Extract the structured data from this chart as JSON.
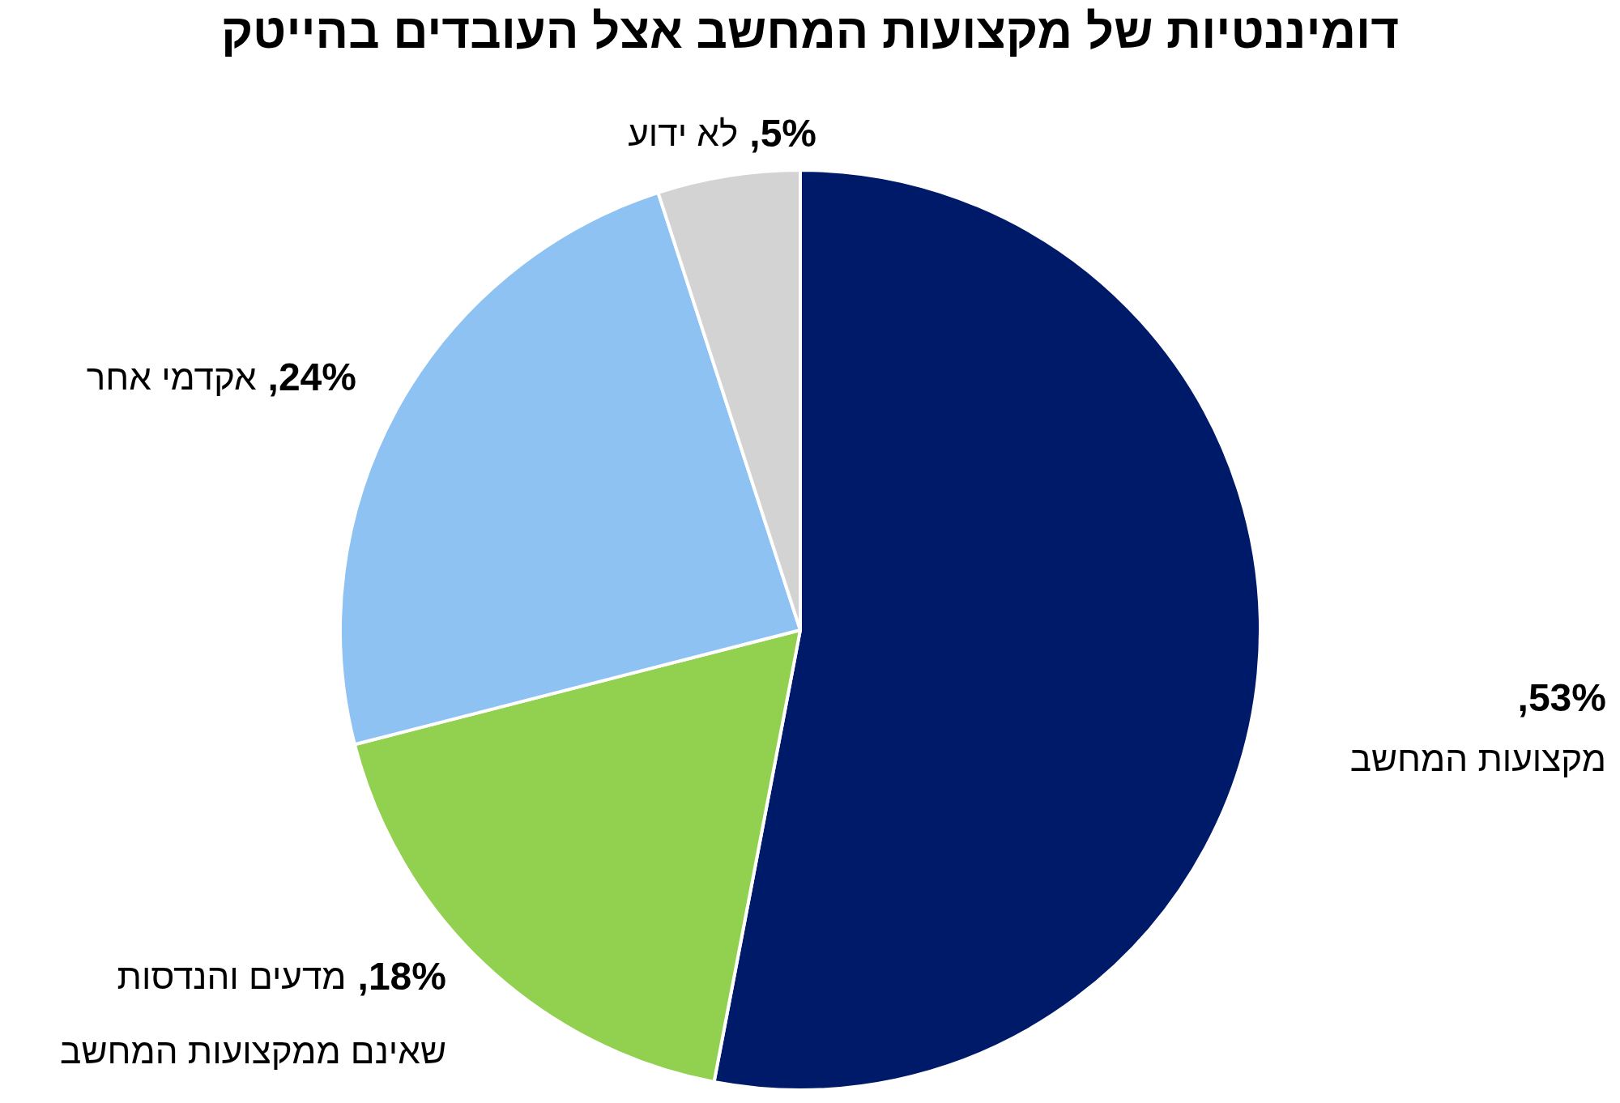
{
  "chart_data": {
    "type": "pie",
    "title": "דומיננטיות של מקצועות המחשב אצל העובדים בהייטק",
    "categories": [
      "מקצועות המחשב",
      "מדעים והנדסות שאינם ממקצועות המחשב",
      "אקדמי אחר",
      "לא ידוע"
    ],
    "values": [
      53,
      18,
      24,
      5
    ],
    "colors": [
      "#001a6a",
      "#92d050",
      "#8dc2f2",
      "#d3d3d3"
    ],
    "value_labels": [
      "53%,",
      "18%,",
      "24%,",
      "5%,"
    ],
    "legend": false
  }
}
